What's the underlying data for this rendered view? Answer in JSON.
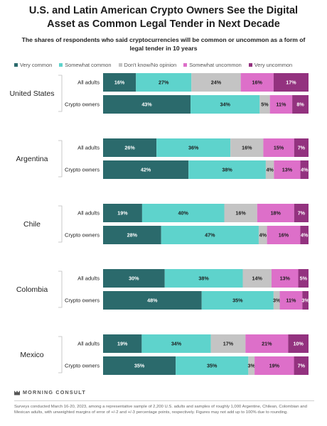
{
  "title": "U.S. and Latin American Crypto Owners See the Digital Asset as Common Legal Tender in Next Decade",
  "subtitle": "The shares of respondents who said cryptocurrencies will be common or uncommon as a form of legal tender in 10 years",
  "brand": "MORNING CONSULT",
  "footnote": "Surveys conducted March 16-20, 2023, among a representative sample of 2,200 U.S. adults and samples of roughly 1,000 Argentine, Chilean, Colombian and Mexican adults, with unweighted margins of error of +/-2 and +/-3 percentage points, respectively. Figures may not add up to 100% due to rounding.",
  "legend": [
    {
      "label": "Very common",
      "color": "#2b6a6c"
    },
    {
      "label": "Somewhat common",
      "color": "#5ed3cc"
    },
    {
      "label": "Don't know/No opinion",
      "color": "#c4c4c4"
    },
    {
      "label": "Somewhat uncommon",
      "color": "#dd6fc9"
    },
    {
      "label": "Very uncommon",
      "color": "#93327f"
    }
  ],
  "chart_data": {
    "type": "bar",
    "orientation": "horizontal",
    "stacked": true,
    "normalized": true,
    "series_names": [
      "Very common",
      "Somewhat common",
      "Don't know/No opinion",
      "Somewhat uncommon",
      "Very uncommon"
    ],
    "groups": [
      {
        "country": "United States",
        "rows": [
          {
            "label": "All adults",
            "values": [
              16,
              27,
              24,
              16,
              17
            ]
          },
          {
            "label": "Crypto owners",
            "values": [
              43,
              34,
              5,
              11,
              8
            ]
          }
        ]
      },
      {
        "country": "Argentina",
        "rows": [
          {
            "label": "All adults",
            "values": [
              26,
              36,
              16,
              15,
              7
            ]
          },
          {
            "label": "Crypto owners",
            "values": [
              42,
              38,
              4,
              13,
              4
            ]
          }
        ]
      },
      {
        "country": "Chile",
        "rows": [
          {
            "label": "All adults",
            "values": [
              19,
              40,
              16,
              18,
              7
            ]
          },
          {
            "label": "Crypto owners",
            "values": [
              28,
              47,
              4,
              16,
              4
            ]
          }
        ]
      },
      {
        "country": "Colombia",
        "rows": [
          {
            "label": "All adults",
            "values": [
              30,
              38,
              14,
              13,
              5
            ]
          },
          {
            "label": "Crypto owners",
            "values": [
              48,
              35,
              3,
              11,
              3
            ]
          }
        ]
      },
      {
        "country": "Mexico",
        "rows": [
          {
            "label": "All adults",
            "values": [
              19,
              34,
              17,
              21,
              10
            ]
          },
          {
            "label": "Crypto owners",
            "values": [
              35,
              35,
              3,
              19,
              7
            ]
          }
        ]
      }
    ]
  }
}
